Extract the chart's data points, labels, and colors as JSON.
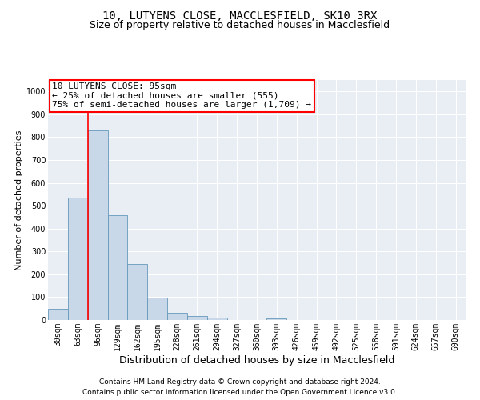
{
  "title1": "10, LUTYENS CLOSE, MACCLESFIELD, SK10 3RX",
  "title2": "Size of property relative to detached houses in Macclesfield",
  "xlabel": "Distribution of detached houses by size in Macclesfield",
  "ylabel": "Number of detached properties",
  "footnote1": "Contains HM Land Registry data © Crown copyright and database right 2024.",
  "footnote2": "Contains public sector information licensed under the Open Government Licence v3.0.",
  "bar_labels": [
    "30sqm",
    "63sqm",
    "96sqm",
    "129sqm",
    "162sqm",
    "195sqm",
    "228sqm",
    "261sqm",
    "294sqm",
    "327sqm",
    "360sqm",
    "393sqm",
    "426sqm",
    "459sqm",
    "492sqm",
    "525sqm",
    "558sqm",
    "591sqm",
    "624sqm",
    "657sqm",
    "690sqm"
  ],
  "bar_values": [
    50,
    535,
    830,
    460,
    245,
    97,
    33,
    18,
    10,
    0,
    0,
    8,
    0,
    0,
    0,
    0,
    0,
    0,
    0,
    0,
    0
  ],
  "bar_color": "#c8d8e8",
  "bar_edge_color": "#6699bb",
  "annotation_text": "10 LUTYENS CLOSE: 95sqm\n← 25% of detached houses are smaller (555)\n75% of semi-detached houses are larger (1,709) →",
  "annotation_box_color": "white",
  "annotation_box_edge_color": "red",
  "ylim": [
    0,
    1050
  ],
  "yticks": [
    0,
    100,
    200,
    300,
    400,
    500,
    600,
    700,
    800,
    900,
    1000
  ],
  "bg_color": "#e8eef4",
  "grid_color": "white",
  "red_line_color": "red",
  "title_fontsize": 10,
  "subtitle_fontsize": 9,
  "xlabel_fontsize": 9,
  "ylabel_fontsize": 8,
  "tick_fontsize": 7,
  "annotation_fontsize": 8,
  "footnote_fontsize": 6.5
}
